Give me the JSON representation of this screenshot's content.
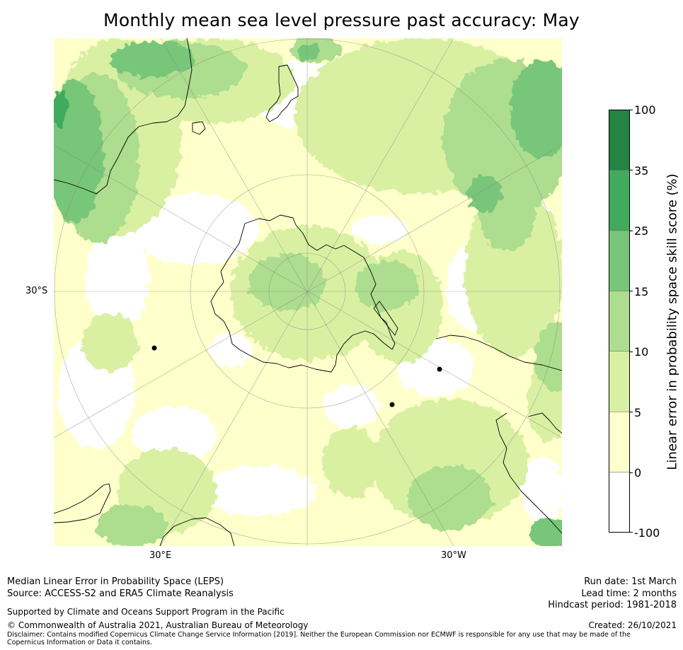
{
  "title": "Monthly mean sea level pressure past accuracy: May",
  "map": {
    "projection": "South polar stereographic",
    "latitude_labels": [
      "30°S"
    ],
    "longitude_labels": [
      "30°E",
      "30°W"
    ],
    "features": [
      "antarctica-coastline",
      "south-america-coastline",
      "australia-coastline",
      "new-zealand-coastline",
      "africa-coastline"
    ]
  },
  "colorbar": {
    "label": "Linear error in probability space skill score (%)",
    "ticks": [
      "100",
      "35",
      "25",
      "15",
      "10",
      "5",
      "0",
      "-100"
    ],
    "bins": [
      {
        "from": -100,
        "to": 0,
        "color": "#ffffff"
      },
      {
        "from": 0,
        "to": 5,
        "color": "#ffffcc"
      },
      {
        "from": 5,
        "to": 10,
        "color": "#d9f0a3"
      },
      {
        "from": 10,
        "to": 15,
        "color": "#addd8e"
      },
      {
        "from": 15,
        "to": 25,
        "color": "#78c679"
      },
      {
        "from": 25,
        "to": 35,
        "color": "#41ab5d"
      },
      {
        "from": 35,
        "to": 100,
        "color": "#238443"
      }
    ]
  },
  "footer": {
    "method": "Median Linear Error in Probability Space (LEPS)",
    "source": "Source: ACCESS-S2 and ERA5 Climate Reanalysis",
    "support": "Supported by Climate and Oceans Support Program in the Pacific",
    "copyright": "© Commonwealth of Australia 2021, Australian Bureau of Meteorology",
    "disclaimer": "Disclaimer: Contains modified Copernicus Climate Change Service Information [2019]. Neither the European Commission nor ECMWF is responsible for any use that may be made of the Copernicus Information or Data it contains.",
    "run_date": "Run date: 1st March",
    "lead_time": "Lead time: 2 months",
    "hindcast": "Hindcast period: 1981-2018",
    "created": "Created: 26/10/2021"
  }
}
